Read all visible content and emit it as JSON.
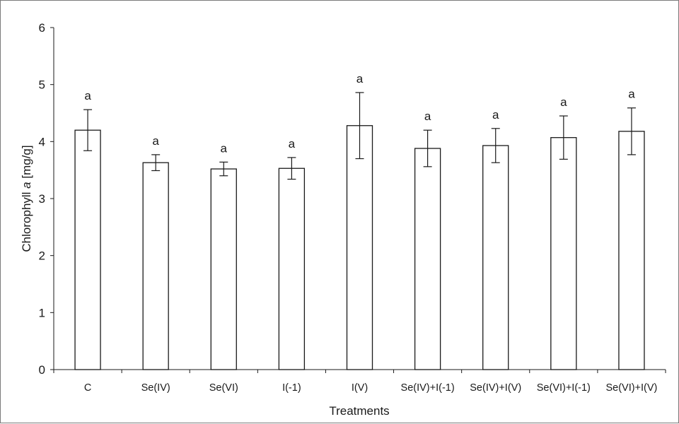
{
  "chart_data": {
    "type": "bar",
    "xlabel": "Treatments",
    "ylabel_prefix": "Chlorophyll ",
    "ylabel_italic": "a",
    "ylabel_suffix": " [mg/g]",
    "ylim": [
      0,
      6
    ],
    "yticks": [
      0,
      1,
      2,
      3,
      4,
      5,
      6
    ],
    "categories": [
      "C",
      "Se(IV)",
      "Se(VI)",
      "I(-1)",
      "I(V)",
      "Se(IV)+I(-1)",
      "Se(IV)+I(V)",
      "Se(VI)+I(-1)",
      "Se(VI)+I(V)"
    ],
    "values": [
      4.2,
      3.63,
      3.52,
      3.53,
      4.28,
      3.88,
      3.93,
      4.07,
      4.18
    ],
    "errors": [
      0.36,
      0.14,
      0.12,
      0.19,
      0.58,
      0.32,
      0.3,
      0.38,
      0.41
    ],
    "significance": [
      "a",
      "a",
      "a",
      "a",
      "a",
      "a",
      "a",
      "a",
      "a"
    ],
    "bar_fill": "#ffffff",
    "bar_stroke": "#1a1a1a",
    "grid": false,
    "legend": "none"
  }
}
